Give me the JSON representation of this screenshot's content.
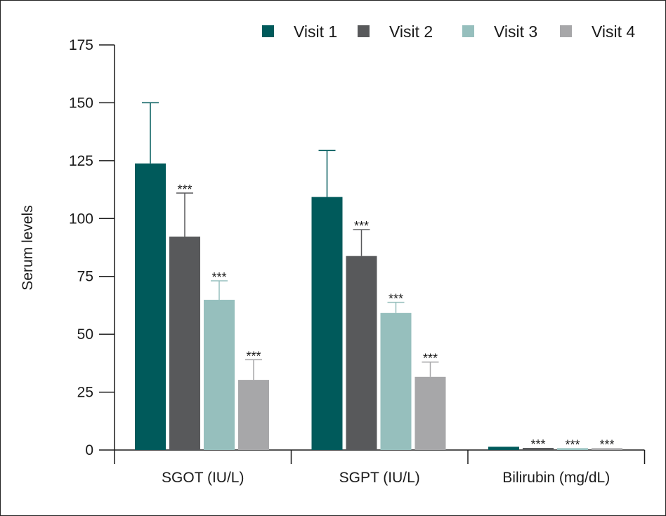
{
  "chart_data": {
    "type": "bar",
    "ylabel": "Serum levels",
    "ylim": [
      0,
      175
    ],
    "yticks": [
      0,
      25,
      50,
      75,
      100,
      125,
      150,
      175
    ],
    "categories": [
      "SGOT (IU/L)",
      "SGPT (IU/L)",
      "Bilirubin (mg/dL)"
    ],
    "series": [
      {
        "name": "Visit 1",
        "color": "#005a5b",
        "values": [
          123.8,
          109.3,
          1.4
        ],
        "error": [
          26.2,
          20.1,
          0
        ]
      },
      {
        "name": "Visit 2",
        "color": "#58595b",
        "values": [
          92.2,
          83.8,
          0.9
        ],
        "error": [
          18.8,
          11.4,
          0
        ]
      },
      {
        "name": "Visit 3",
        "color": "#96bfbd",
        "values": [
          64.9,
          59.2,
          0.8
        ],
        "error": [
          8.2,
          4.6,
          0
        ]
      },
      {
        "name": "Visit 4",
        "color": "#a7a7a9",
        "values": [
          30.3,
          31.6,
          0.8
        ],
        "error": [
          8.7,
          6.4,
          0
        ]
      }
    ],
    "significance": [
      [
        "",
        "***",
        "***",
        "***"
      ],
      [
        "",
        "***",
        "***",
        "***"
      ],
      [
        "",
        "***",
        "***",
        "***"
      ]
    ],
    "legend_position": "top-right",
    "grid": false
  }
}
